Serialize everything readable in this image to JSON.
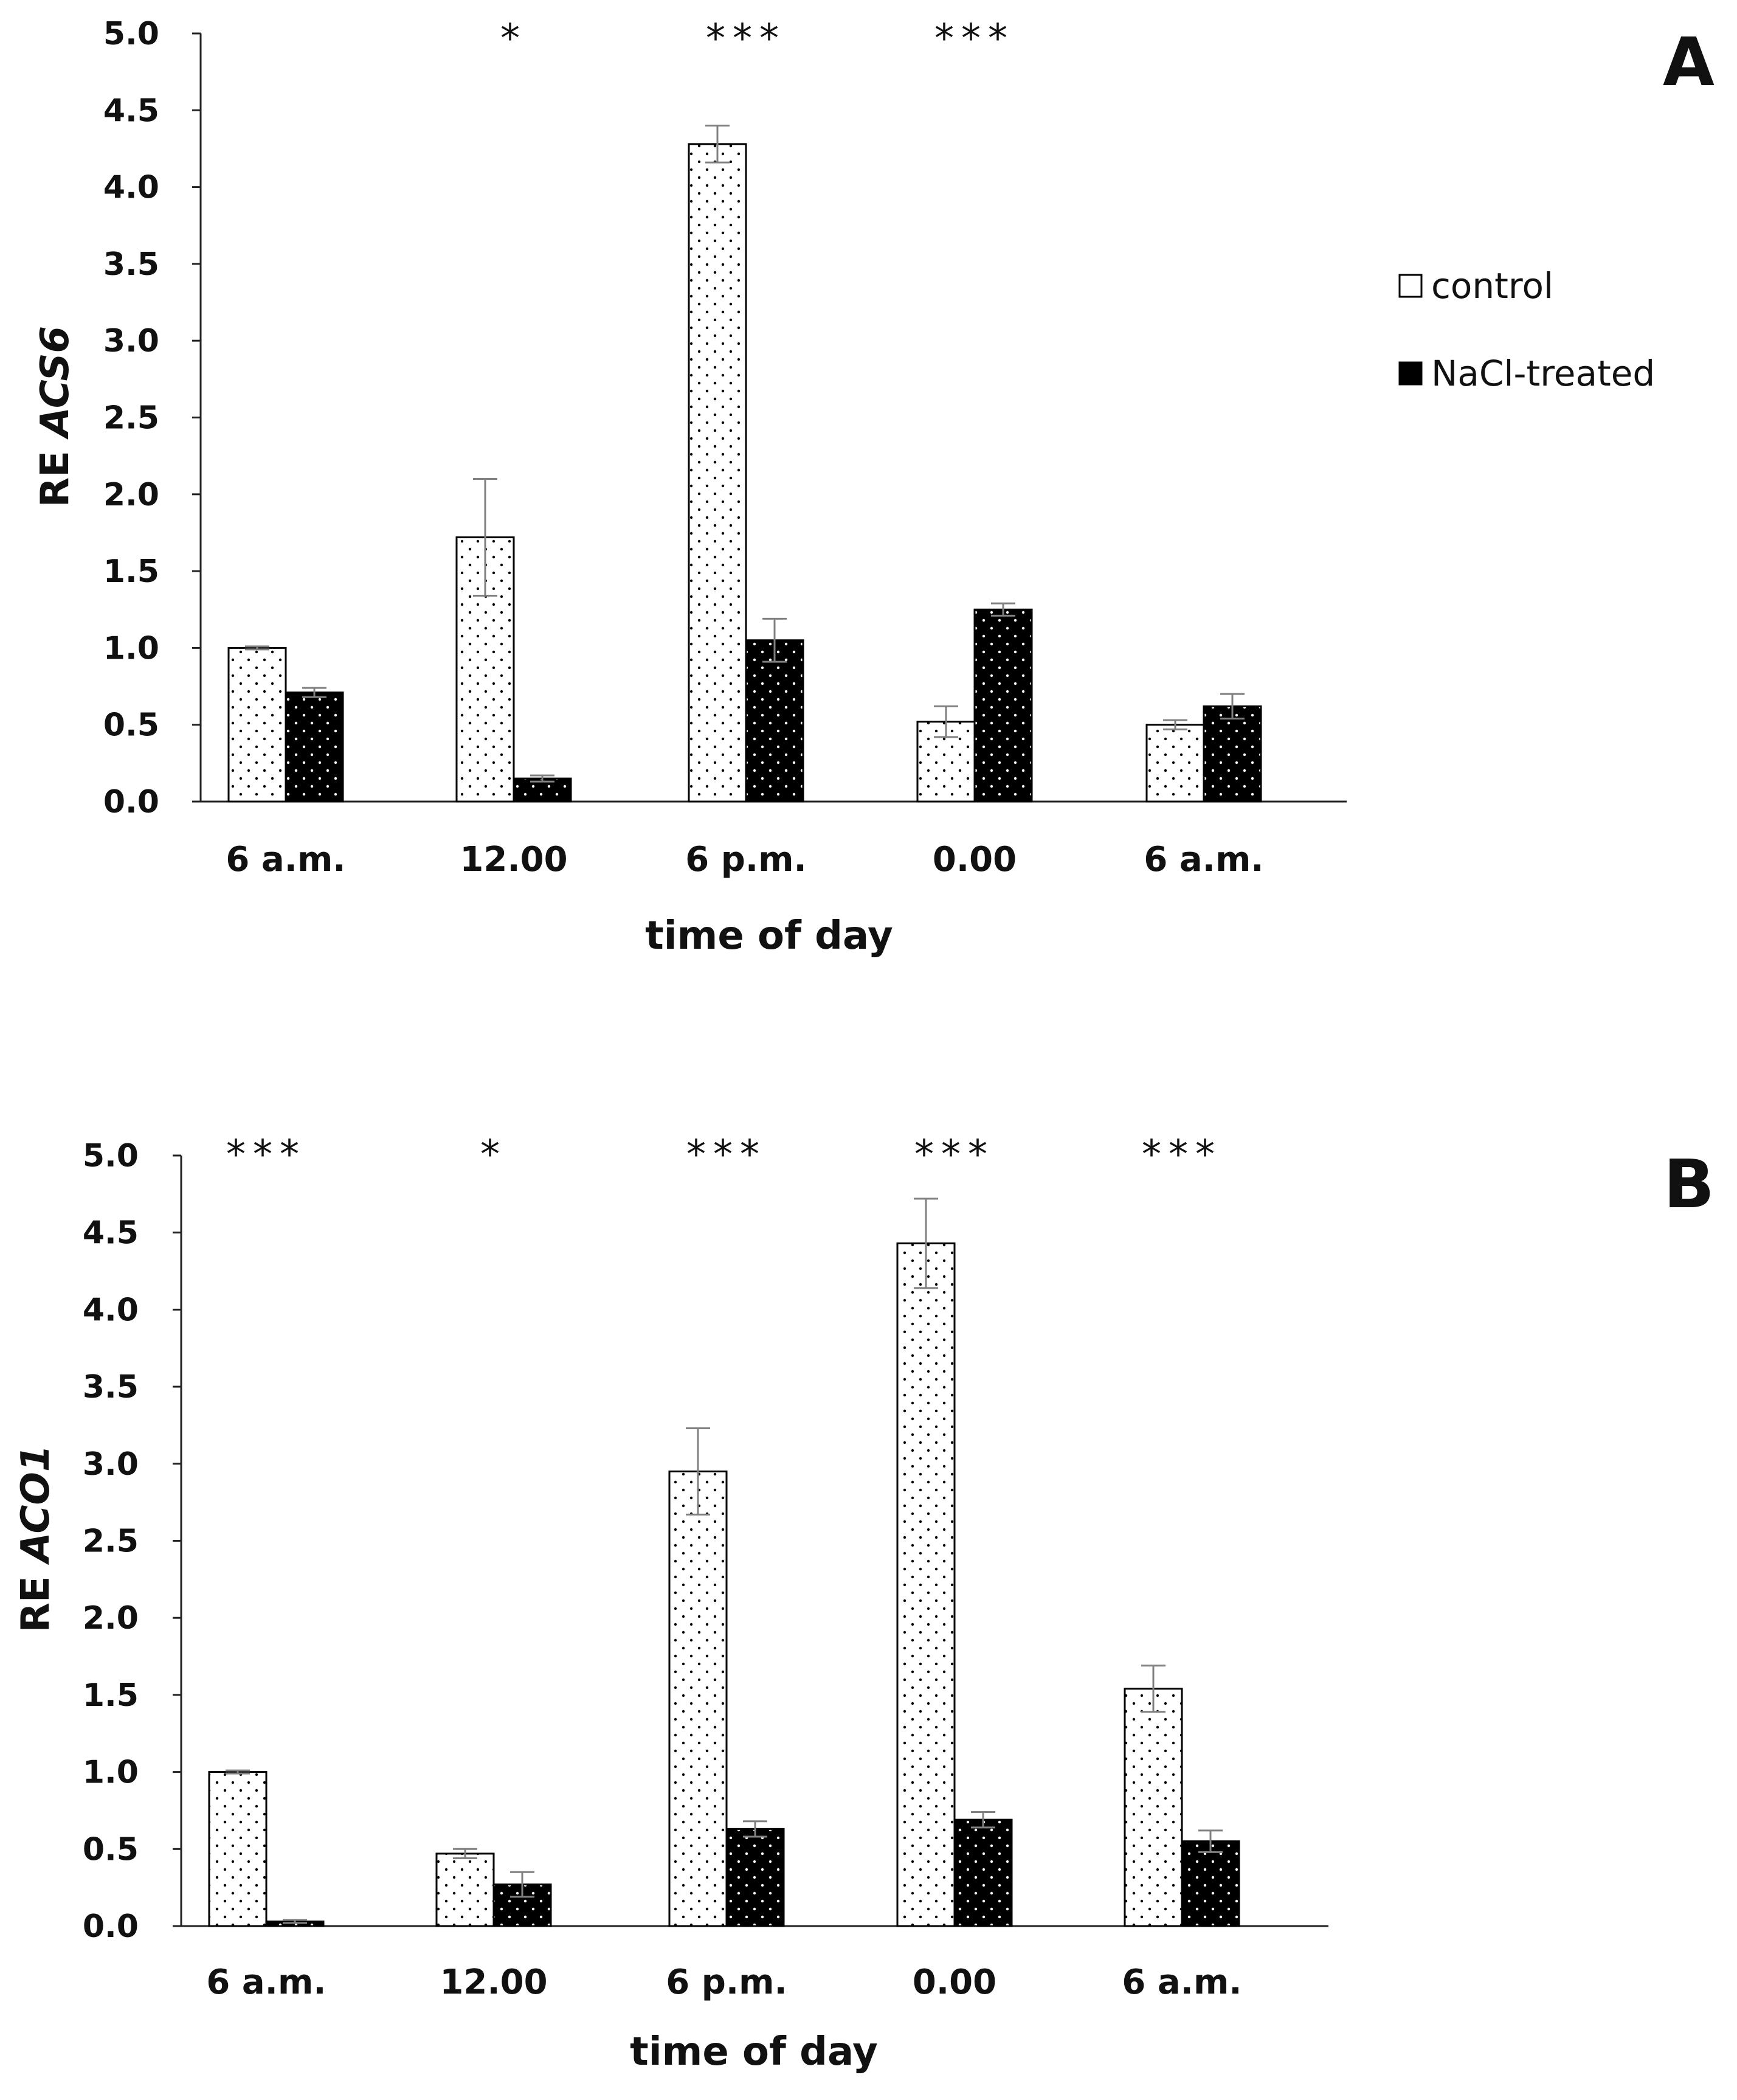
{
  "legend": {
    "control_label": "control",
    "nacl_label": "NaCl-treated"
  },
  "colors": {
    "control_fill": "#ffffff",
    "nacl_fill": "#000000",
    "axis": "#222222",
    "error_bar": "#808080"
  },
  "chart_data": [
    {
      "type": "bar",
      "panel": "A",
      "ylabel_prefix": "RE ",
      "ylabel_gene": "ACS6",
      "xlabel": "time of day",
      "categories": [
        "6 a.m.",
        "12.00",
        "6 p.m.",
        "0.00",
        "6 a.m."
      ],
      "ylim": [
        0,
        5
      ],
      "yticks": [
        "0.0",
        "0.5",
        "1.0",
        "1.5",
        "2.0",
        "2.5",
        "3.0",
        "3.5",
        "4.0",
        "4.5",
        "5.0"
      ],
      "series": [
        {
          "name": "control",
          "values": [
            1.0,
            1.72,
            4.28,
            0.52,
            0.5
          ],
          "errors": [
            0.01,
            0.38,
            0.12,
            0.1,
            0.03
          ]
        },
        {
          "name": "NaCl-treated",
          "values": [
            0.71,
            0.15,
            1.05,
            1.25,
            0.62
          ],
          "errors": [
            0.03,
            0.02,
            0.14,
            0.04,
            0.08
          ]
        }
      ],
      "significance": [
        "",
        "*",
        "***",
        "***",
        ""
      ]
    },
    {
      "type": "bar",
      "panel": "B",
      "ylabel_prefix": "RE ",
      "ylabel_gene": "ACO1",
      "xlabel": "time of day",
      "categories": [
        "6 a.m.",
        "12.00",
        "6 p.m.",
        "0.00",
        "6 a.m."
      ],
      "ylim": [
        0,
        5
      ],
      "yticks": [
        "0.0",
        "0.5",
        "1.0",
        "1.5",
        "2.0",
        "2.5",
        "3.0",
        "3.5",
        "4.0",
        "4.5",
        "5.0"
      ],
      "series": [
        {
          "name": "control",
          "values": [
            1.0,
            0.47,
            2.95,
            4.43,
            1.54
          ],
          "errors": [
            0.01,
            0.03,
            0.28,
            0.29,
            0.15
          ]
        },
        {
          "name": "NaCl-treated",
          "values": [
            0.03,
            0.27,
            0.63,
            0.69,
            0.55
          ],
          "errors": [
            0.01,
            0.08,
            0.05,
            0.05,
            0.07
          ]
        }
      ],
      "significance": [
        "***",
        "*",
        "***",
        "***",
        "***"
      ]
    }
  ]
}
